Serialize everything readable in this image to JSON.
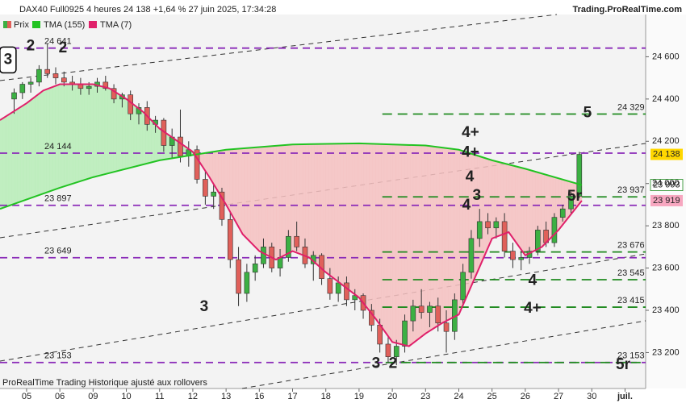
{
  "chart_data": {
    "type": "candlestick",
    "title": "DAX40 Full0925 4 heures 24 138 +1,64 % 27 juin 2025, 17:34:28",
    "source": "Trading.ProRealTime.com",
    "footer": "ProRealTime Trading  Historique ajusté aux rollovers",
    "name": "Prix",
    "up_color": "#3cb043",
    "down_color": "#e0605a",
    "x": [
      -0.375,
      -0.125,
      0.125,
      0.375,
      0.625,
      0.875,
      1.125,
      1.375,
      1.625,
      1.875,
      2.125,
      2.375,
      2.625,
      2.875,
      3.125,
      3.375,
      3.625,
      3.875,
      4.125,
      4.375,
      4.625,
      4.875,
      5.125,
      5.375,
      5.625,
      5.875,
      6.125,
      6.375,
      6.625,
      6.875,
      7.125,
      7.375,
      7.625,
      7.875,
      8.125,
      8.375,
      8.625,
      8.875,
      9.125,
      9.375,
      9.625,
      9.875,
      10.125,
      10.375,
      10.625,
      10.875,
      11.125,
      11.375,
      11.625,
      11.875,
      12.125,
      12.375,
      12.625,
      12.875,
      13.125,
      13.375,
      13.625,
      13.875,
      14.125,
      14.375,
      14.625,
      14.875,
      15.125,
      15.375,
      15.625,
      15.875,
      16.125,
      16.375,
      16.625
    ],
    "ohlc": [
      [
        24400,
        24450,
        24330,
        24430
      ],
      [
        24430,
        24480,
        24400,
        24470
      ],
      [
        24470,
        24500,
        24430,
        24480
      ],
      [
        24480,
        24560,
        24460,
        24540
      ],
      [
        24540,
        24660,
        24500,
        24520
      ],
      [
        24520,
        24550,
        24470,
        24500
      ],
      [
        24500,
        24530,
        24460,
        24480
      ],
      [
        24480,
        24510,
        24440,
        24470
      ],
      [
        24470,
        24500,
        24420,
        24450
      ],
      [
        24450,
        24480,
        24420,
        24460
      ],
      [
        24460,
        24500,
        24430,
        24480
      ],
      [
        24480,
        24510,
        24440,
        24450
      ],
      [
        24450,
        24470,
        24380,
        24400
      ],
      [
        24400,
        24430,
        24360,
        24420
      ],
      [
        24420,
        24440,
        24300,
        24330
      ],
      [
        24330,
        24380,
        24280,
        24360
      ],
      [
        24360,
        24390,
        24250,
        24280
      ],
      [
        24280,
        24320,
        24240,
        24300
      ],
      [
        24300,
        24310,
        24150,
        24180
      ],
      [
        24180,
        24260,
        24120,
        24220
      ],
      [
        24220,
        24350,
        24100,
        24130
      ],
      [
        24130,
        24200,
        24080,
        24160
      ],
      [
        24160,
        24180,
        24000,
        24020
      ],
      [
        24020,
        24060,
        23900,
        23940
      ],
      [
        23940,
        24000,
        23880,
        23960
      ],
      [
        23960,
        23980,
        23800,
        23830
      ],
      [
        23830,
        23870,
        23600,
        23640
      ],
      [
        23640,
        23700,
        23420,
        23480
      ],
      [
        23480,
        23620,
        23440,
        23580
      ],
      [
        23580,
        23660,
        23540,
        23620
      ],
      [
        23620,
        23740,
        23600,
        23700
      ],
      [
        23700,
        23720,
        23580,
        23600
      ],
      [
        23600,
        23690,
        23560,
        23650
      ],
      [
        23650,
        23780,
        23630,
        23750
      ],
      [
        23750,
        23820,
        23680,
        23700
      ],
      [
        23700,
        23740,
        23600,
        23620
      ],
      [
        23620,
        23680,
        23540,
        23660
      ],
      [
        23660,
        23670,
        23520,
        23550
      ],
      [
        23550,
        23600,
        23450,
        23480
      ],
      [
        23480,
        23560,
        23440,
        23530
      ],
      [
        23530,
        23560,
        23420,
        23450
      ],
      [
        23450,
        23500,
        23400,
        23470
      ],
      [
        23470,
        23480,
        23360,
        23400
      ],
      [
        23400,
        23430,
        23300,
        23330
      ],
      [
        23330,
        23360,
        23200,
        23240
      ],
      [
        23240,
        23280,
        23150,
        23180
      ],
      [
        23180,
        23260,
        23140,
        23230
      ],
      [
        23230,
        23380,
        23200,
        23350
      ],
      [
        23350,
        23450,
        23300,
        23420
      ],
      [
        23420,
        23500,
        23360,
        23390
      ],
      [
        23390,
        23440,
        23320,
        23420
      ],
      [
        23420,
        23460,
        23300,
        23340
      ],
      [
        23340,
        23400,
        23200,
        23300
      ],
      [
        23300,
        23480,
        23260,
        23450
      ],
      [
        23450,
        23620,
        23420,
        23580
      ],
      [
        23580,
        23780,
        23550,
        23740
      ],
      [
        23740,
        23880,
        23700,
        23820
      ],
      [
        23820,
        23860,
        23760,
        23790
      ],
      [
        23790,
        23840,
        23740,
        23820
      ],
      [
        23820,
        23860,
        23650,
        23680
      ],
      [
        23680,
        23720,
        23600,
        23640
      ],
      [
        23640,
        23680,
        23590,
        23650
      ],
      [
        23650,
        23700,
        23620,
        23680
      ],
      [
        23680,
        23800,
        23660,
        23780
      ],
      [
        23780,
        23820,
        23700,
        23720
      ],
      [
        23720,
        23860,
        23700,
        23840
      ],
      [
        23840,
        23900,
        23820,
        23880
      ],
      [
        23880,
        23960,
        23860,
        23940
      ],
      [
        23940,
        24150,
        23930,
        24138
      ]
    ],
    "series": [
      {
        "name": "TMA (155)",
        "color": "#22c322",
        "x": [
          -0.8,
          1,
          2,
          4,
          6,
          8,
          10,
          12,
          13,
          14,
          15,
          16.7
        ],
        "values": [
          23880,
          23980,
          24030,
          24110,
          24160,
          24185,
          24190,
          24180,
          24160,
          24110,
          24070,
          23993
        ]
      },
      {
        "name": "TMA (7)",
        "color": "#e0206a",
        "x": [
          -0.8,
          0,
          0.5,
          1,
          2,
          2.5,
          3,
          3.5,
          4,
          5,
          5.5,
          6,
          6.5,
          7,
          7.5,
          8,
          8.5,
          9,
          9.5,
          10,
          10.5,
          11,
          11.5,
          12,
          12.5,
          13,
          13.5,
          14,
          14.5,
          15,
          15.5,
          16,
          16.7
        ],
        "values": [
          24300,
          24380,
          24440,
          24470,
          24470,
          24450,
          24400,
          24340,
          24260,
          24150,
          24030,
          23900,
          23760,
          23680,
          23640,
          23680,
          23650,
          23580,
          23520,
          23460,
          23360,
          23250,
          23230,
          23290,
          23340,
          23380,
          23560,
          23740,
          23770,
          23660,
          23700,
          23780,
          23919
        ]
      }
    ],
    "fill_above_color": "#b6ecb6",
    "fill_below_color": "#f4c0c0",
    "levels": [
      {
        "value": 24641,
        "label": "24 641",
        "color": "#8a2ab8",
        "from": -0.8
      },
      {
        "value": 24144,
        "label": "24 144",
        "color": "#8a2ab8",
        "from": -0.8
      },
      {
        "value": 23897,
        "label": "23 897",
        "color": "#8a2ab8",
        "from": -0.8
      },
      {
        "value": 23649,
        "label": "23 649",
        "color": "#8a2ab8",
        "from": -0.8
      },
      {
        "value": 23153,
        "label": "23 153",
        "color": "#8a2ab8",
        "from": -0.8
      },
      {
        "value": 24329,
        "label": "24 329",
        "color": "#1f8a1f",
        "from": 10.7
      },
      {
        "value": 23937,
        "label": "23 937",
        "color": "#1f8a1f",
        "from": 10.7
      },
      {
        "value": 23676,
        "label": "23 676",
        "color": "#1f8a1f",
        "from": 10.7
      },
      {
        "value": 23545,
        "label": "23 545",
        "color": "#1f8a1f",
        "from": 10.7
      },
      {
        "value": 23415,
        "label": "23 415",
        "color": "#1f8a1f",
        "from": 10.7
      },
      {
        "value": 23153,
        "label": "23 153",
        "color": "#1f8a1f",
        "from": 10.8
      }
    ],
    "tags": [
      {
        "value": 24138,
        "label": "24 138",
        "bg": "#ffd700",
        "color": "#000"
      },
      {
        "value": 23993,
        "label": "23 993",
        "bg": "#ffffff",
        "color": "#1f8a1f"
      },
      {
        "value": 23919,
        "label": "23 919",
        "bg": "#f7a7c0",
        "color": "#000"
      }
    ],
    "annotations": [
      {
        "text": "2",
        "x": 0.12,
        "y": 24650,
        "color": "#8a2ab8"
      },
      {
        "text": "2",
        "x": 1.09,
        "y": 24640,
        "color": "#1f1fe0"
      },
      {
        "text": "3",
        "x": -0.56,
        "y": 24585,
        "color": "#000",
        "box": true
      },
      {
        "text": "3",
        "x": 5.34,
        "y": 23415,
        "color": "#1f1fe0"
      },
      {
        "text": "3",
        "x": 10.51,
        "y": 23147,
        "color": "#8a2ab8"
      },
      {
        "text": "2",
        "x": 11.02,
        "y": 23147,
        "color": "#1f8a1f"
      },
      {
        "text": "4+",
        "x": 13.35,
        "y": 24240,
        "color": "#1f1fe0"
      },
      {
        "text": "4+",
        "x": 13.35,
        "y": 24145,
        "color": "#8a2ab8"
      },
      {
        "text": "4",
        "x": 13.33,
        "y": 24030,
        "color": "#1f1fe0"
      },
      {
        "text": "4",
        "x": 13.23,
        "y": 23896,
        "color": "#8a2ab8"
      },
      {
        "text": "3",
        "x": 13.54,
        "y": 23942,
        "color": "#1f8a1f"
      },
      {
        "text": "5",
        "x": 16.87,
        "y": 24332,
        "color": "#1f8a1f"
      },
      {
        "text": "5r",
        "x": 16.48,
        "y": 23938,
        "color": "#1f8a1f"
      },
      {
        "text": "4",
        "x": 15.22,
        "y": 23540,
        "color": "#1f8a1f"
      },
      {
        "text": "4+",
        "x": 15.22,
        "y": 23407,
        "color": "#1f8a1f"
      },
      {
        "text": "5r",
        "x": 17.94,
        "y": 23140,
        "color": "#8a2ab8"
      }
    ],
    "xlim": [
      -0.8,
      18.62
    ],
    "ylim": [
      23030,
      24800
    ],
    "xticks": [
      {
        "value": 0,
        "label": "05"
      },
      {
        "value": 1,
        "label": "06"
      },
      {
        "value": 2,
        "label": "09"
      },
      {
        "value": 3,
        "label": "10"
      },
      {
        "value": 4,
        "label": "11"
      },
      {
        "value": 5,
        "label": "12"
      },
      {
        "value": 6,
        "label": "13"
      },
      {
        "value": 7,
        "label": "16"
      },
      {
        "value": 8,
        "label": "17"
      },
      {
        "value": 9,
        "label": "18"
      },
      {
        "value": 10,
        "label": "19"
      },
      {
        "value": 11,
        "label": "20"
      },
      {
        "value": 12,
        "label": "23"
      },
      {
        "value": 13,
        "label": "24"
      },
      {
        "value": 14,
        "label": "25"
      },
      {
        "value": 15,
        "label": "26"
      },
      {
        "value": 16,
        "label": "27"
      },
      {
        "value": 17,
        "label": "30"
      },
      {
        "value": 18,
        "label": "juil."
      }
    ],
    "yticks": [
      {
        "value": 23200,
        "label": "23 200"
      },
      {
        "value": 23400,
        "label": "23 400"
      },
      {
        "value": 23600,
        "label": "23 600"
      },
      {
        "value": 23800,
        "label": "23 800"
      },
      {
        "value": 24000,
        "label": "24 000"
      },
      {
        "value": 24200,
        "label": "24 200"
      },
      {
        "value": 24400,
        "label": "24 400"
      },
      {
        "value": 24600,
        "label": "24 600"
      }
    ]
  }
}
